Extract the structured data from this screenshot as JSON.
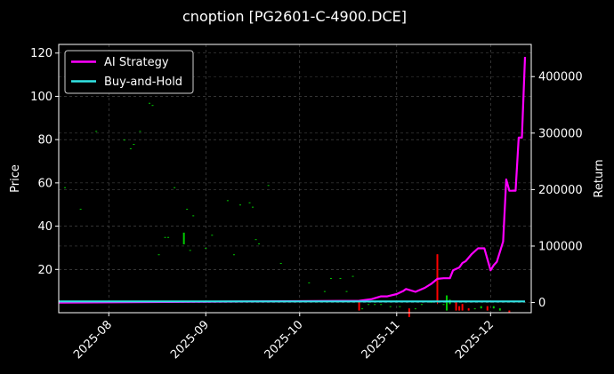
{
  "chart_data": {
    "title": "cnoption [PG2601-C-4900.DCE]",
    "type": "line",
    "left_axis": {
      "label": "Price",
      "ylim": [
        0,
        124
      ],
      "ticks": [
        20,
        40,
        60,
        80,
        100,
        120
      ]
    },
    "right_axis": {
      "label": "Return",
      "ylim": [
        -18000,
        457000
      ],
      "ticks": [
        0,
        100000,
        200000,
        300000,
        400000
      ],
      "tick_labels": [
        "0",
        "100000",
        "200000",
        "300000",
        "400000"
      ]
    },
    "x_axis": {
      "type": "date",
      "range": [
        "2025-07-16",
        "2025-12-14"
      ],
      "ticks": [
        "2025-08-01",
        "2025-09-01",
        "2025-10-01",
        "2025-11-01",
        "2025-12-01"
      ],
      "tick_labels": [
        "2025-08",
        "2025-09",
        "2025-10",
        "2025-11",
        "2025-12"
      ]
    },
    "grid": true,
    "legend_position": "top-left",
    "colors": {
      "ai_strategy": "#ff00ff",
      "buy_and_hold": "#33e6e6",
      "up": "#00cc00",
      "down": "#ff0000"
    },
    "series": [
      {
        "name": "AI Strategy",
        "axis": "right",
        "x": [
          "2025-07-16",
          "2025-10-20",
          "2025-10-24",
          "2025-10-27",
          "2025-10-29",
          "2025-11-01",
          "2025-11-03",
          "2025-11-04",
          "2025-11-07",
          "2025-11-10",
          "2025-11-12",
          "2025-11-14",
          "2025-11-16",
          "2025-11-18",
          "2025-11-19",
          "2025-11-21",
          "2025-11-22",
          "2025-11-23",
          "2025-11-25",
          "2025-11-27",
          "2025-11-28",
          "2025-11-29",
          "2025-12-01",
          "2025-12-02",
          "2025-12-03",
          "2025-12-05",
          "2025-12-06",
          "2025-12-07",
          "2025-12-08",
          "2025-12-09",
          "2025-12-10",
          "2025-12-11",
          "2025-12-12"
        ],
        "values": [
          0,
          3000,
          6000,
          11000,
          11000,
          15000,
          20000,
          24000,
          19000,
          26000,
          33000,
          42000,
          43000,
          43000,
          57000,
          62000,
          70000,
          73000,
          86000,
          96000,
          96000,
          96000,
          57000,
          66000,
          72000,
          108000,
          218000,
          198000,
          198000,
          198000,
          292000,
          292000,
          435000
        ]
      },
      {
        "name": "Buy-and-Hold",
        "axis": "right",
        "x": [
          "2025-07-16",
          "2025-12-12"
        ],
        "values": [
          2000,
          2000
        ]
      }
    ],
    "candles": {
      "axis": "left",
      "x": [
        "2025-07-18",
        "2025-07-23",
        "2025-07-28",
        "2025-08-06",
        "2025-08-08",
        "2025-08-09",
        "2025-08-11",
        "2025-08-14",
        "2025-08-15",
        "2025-08-17",
        "2025-08-19",
        "2025-08-20",
        "2025-08-22",
        "2025-08-25",
        "2025-08-26",
        "2025-08-27",
        "2025-08-28",
        "2025-09-01",
        "2025-09-03",
        "2025-09-08",
        "2025-09-10",
        "2025-09-12",
        "2025-09-15",
        "2025-09-16",
        "2025-09-17",
        "2025-09-18",
        "2025-09-21",
        "2025-09-25",
        "2025-10-04",
        "2025-10-09",
        "2025-10-11",
        "2025-10-14",
        "2025-10-16",
        "2025-10-18",
        "2025-10-20",
        "2025-10-21",
        "2025-10-23",
        "2025-10-25",
        "2025-10-27",
        "2025-10-30",
        "2025-11-02",
        "2025-11-05",
        "2025-11-07",
        "2025-11-09",
        "2025-11-12",
        "2025-11-14",
        "2025-11-16",
        "2025-11-18",
        "2025-11-20",
        "2025-11-21",
        "2025-11-22",
        "2025-11-24",
        "2025-11-26",
        "2025-11-28",
        "2025-11-30",
        "2025-12-02",
        "2025-12-04",
        "2025-12-07"
      ],
      "open": [
        58,
        48,
        84,
        80,
        76,
        78,
        84,
        97,
        96,
        27,
        35,
        35,
        58,
        32,
        48,
        29,
        45,
        30,
        36,
        52,
        27,
        50,
        51,
        49,
        34,
        32,
        59,
        23,
        14,
        10,
        16,
        16,
        10,
        17,
        5,
        2,
        4,
        4,
        4,
        3,
        3,
        1,
        2,
        4,
        5,
        27,
        4,
        4,
        5,
        3,
        4,
        2,
        2,
        2,
        3,
        2,
        1,
        1
      ],
      "close": [
        58,
        48,
        84,
        80,
        76,
        78,
        84,
        97,
        96,
        27,
        35,
        35,
        58,
        32,
        48,
        29,
        45,
        30,
        36,
        52,
        27,
        50,
        51,
        49,
        34,
        32,
        59,
        23,
        14,
        10,
        16,
        16,
        10,
        17,
        1,
        2,
        4,
        4,
        4,
        3,
        3,
        1,
        2,
        4,
        5,
        5,
        4,
        6,
        1,
        1,
        1,
        1,
        2,
        3,
        1,
        3,
        2,
        0
      ],
      "high": [
        58,
        48,
        84,
        80,
        76,
        78,
        84,
        97,
        96,
        27,
        35,
        35,
        58,
        32,
        48,
        29,
        45,
        30,
        36,
        52,
        27,
        50,
        51,
        49,
        34,
        32,
        59,
        23,
        14,
        10,
        16,
        16,
        10,
        17,
        5,
        2,
        4,
        4,
        4,
        3,
        3,
        1,
        2,
        4,
        5,
        27,
        4,
        6,
        5,
        3,
        4,
        2,
        2,
        3,
        3,
        3,
        2,
        1
      ],
      "low": [
        58,
        48,
        84,
        80,
        76,
        78,
        84,
        97,
        96,
        27,
        35,
        35,
        58,
        32,
        48,
        29,
        45,
        30,
        36,
        52,
        27,
        50,
        51,
        49,
        34,
        32,
        59,
        23,
        14,
        10,
        16,
        16,
        10,
        17,
        1,
        2,
        4,
        4,
        4,
        3,
        3,
        1,
        2,
        4,
        5,
        4,
        4,
        4,
        1,
        1,
        1,
        1,
        2,
        2,
        1,
        2,
        1,
        0
      ]
    },
    "extra_bars": [
      {
        "x": "2025-08-25",
        "low": 32,
        "high": 37,
        "color": "up"
      },
      {
        "x": "2025-11-17",
        "low": 1,
        "high": 8,
        "color": "up"
      },
      {
        "x": "2025-11-05",
        "low": -2,
        "high": 2,
        "color": "down"
      }
    ]
  }
}
